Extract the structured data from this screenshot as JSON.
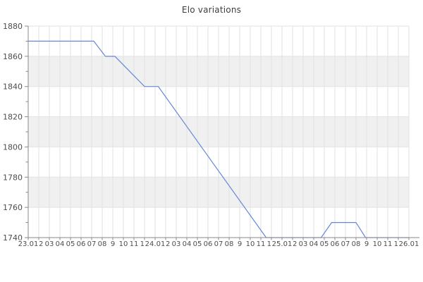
{
  "title": "Elo variations",
  "chart_data": {
    "type": "line",
    "title": "Elo variations",
    "xlabel": "",
    "ylabel": "",
    "ylim": [
      1740,
      1880
    ],
    "y_major_ticks": [
      1740,
      1760,
      1780,
      1800,
      1820,
      1840,
      1860,
      1880
    ],
    "y_minor_tick_step": 10,
    "x_tick_labels": [
      "23.01",
      "02",
      "03",
      "04",
      "05",
      "06",
      "07",
      "08",
      "9",
      "10",
      "11",
      "12",
      "24.01",
      "02",
      "03",
      "04",
      "05",
      "06",
      "07",
      "08",
      "9",
      "10",
      "11",
      "12",
      "25.01",
      "02",
      "03",
      "04",
      "05",
      "06",
      "07",
      "08",
      "9",
      "10",
      "11",
      "12",
      "26.01"
    ],
    "day_tick_indices": [
      0,
      12,
      24,
      36
    ],
    "gray_bands_elo": [
      [
        1840,
        1860
      ],
      [
        1800,
        1820
      ],
      [
        1760,
        1780
      ]
    ],
    "grid": "vertical gridlines at every x tick, horizontal lines at every 20 Elo",
    "legend_position": "none",
    "series": [
      {
        "name": "Elo",
        "points_tick_elo": [
          [
            0,
            1870
          ],
          [
            6.2,
            1870
          ],
          [
            7.3,
            1860
          ],
          [
            8.2,
            1860
          ],
          [
            11.0,
            1840
          ],
          [
            12.3,
            1840
          ],
          [
            22.5,
            1740
          ],
          [
            27.7,
            1740
          ],
          [
            28.7,
            1750
          ],
          [
            31.0,
            1750
          ],
          [
            31.9,
            1740
          ],
          [
            36,
            1740
          ]
        ]
      }
    ],
    "colors": {
      "line": "#6589d9",
      "band": "#f0f0f0",
      "grid": "#e2e2e2",
      "axis": "#8a8a8a",
      "tick_text": "#4d4d4d",
      "title_text": "#3d3d3d"
    }
  }
}
